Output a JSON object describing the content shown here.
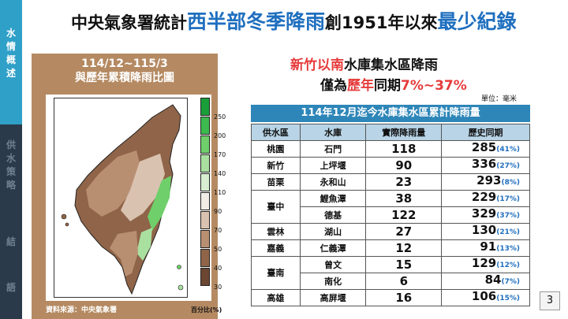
{
  "sidebar": {
    "items": [
      {
        "label": "水情概述"
      },
      {
        "label": "供水策略"
      },
      {
        "label": "結"
      },
      {
        "label": "語"
      }
    ]
  },
  "title": {
    "part1": "中央氣象署統計",
    "part2": "西半部冬季降雨",
    "part3": "創1951年以來",
    "part4": "最少紀錄"
  },
  "map": {
    "heading_line1": "114/12~115/3",
    "heading_line2": "與歷年累積降雨比圖",
    "source": "資料來源：中央氣象署",
    "colorbar_unit": "百分比(%)",
    "colorbar": [
      {
        "label": "250",
        "color": "#1a9e3a"
      },
      {
        "label": "200",
        "color": "#3cba4e"
      },
      {
        "label": "170",
        "color": "#6fcf6a"
      },
      {
        "label": "140",
        "color": "#a9e0a0"
      },
      {
        "label": "110",
        "color": "#d8eed2"
      },
      {
        "label": "90",
        "color": "#f2ece6"
      },
      {
        "label": "70",
        "color": "#d9c2b0"
      },
      {
        "label": "50",
        "color": "#b98f72"
      },
      {
        "label": "40",
        "color": "#8f6448"
      },
      {
        "label": "30",
        "color": "#6b4632"
      }
    ]
  },
  "subtitle": {
    "line1_red": "新竹以南",
    "line1_rest": "水庫集水區降雨",
    "line2_a": "僅為",
    "line2_red1": "歷年",
    "line2_b": "同期",
    "line2_red2": "7%~37%"
  },
  "unit_note": "單位：毫米",
  "table": {
    "title": "114年12月迄今水庫集水區累計降雨量",
    "headers": [
      "供水區",
      "水庫",
      "實際降雨量",
      "歷史同期"
    ],
    "rows": [
      {
        "region": "桃園",
        "reservoir": "石門",
        "actual": "118",
        "hist": "285",
        "pct": "(41%)"
      },
      {
        "region": "新竹",
        "reservoir": "上坪堰",
        "actual": "90",
        "hist": "336",
        "pct": "(27%)"
      },
      {
        "region": "苗栗",
        "reservoir": "永和山",
        "actual": "23",
        "hist": "293",
        "pct": "(8%)"
      },
      {
        "region": "臺中",
        "reservoir": "鯉魚潭",
        "actual": "38",
        "hist": "229",
        "pct": "(17%)"
      },
      {
        "region": "",
        "reservoir": "德基",
        "actual": "122",
        "hist": "329",
        "pct": "(37%)"
      },
      {
        "region": "雲林",
        "reservoir": "湖山",
        "actual": "27",
        "hist": "130",
        "pct": "(21%)"
      },
      {
        "region": "嘉義",
        "reservoir": "仁義潭",
        "actual": "12",
        "hist": "91",
        "pct": "(13%)"
      },
      {
        "region": "臺南",
        "reservoir": "曾文",
        "actual": "15",
        "hist": "129",
        "pct": "(12%)"
      },
      {
        "region": "",
        "reservoir": "南化",
        "actual": "6",
        "hist": "84",
        "pct": "(7%)"
      },
      {
        "region": "高雄",
        "reservoir": "高屏堰",
        "actual": "16",
        "hist": "106",
        "pct": "(15%)"
      }
    ]
  },
  "page_number": "3"
}
